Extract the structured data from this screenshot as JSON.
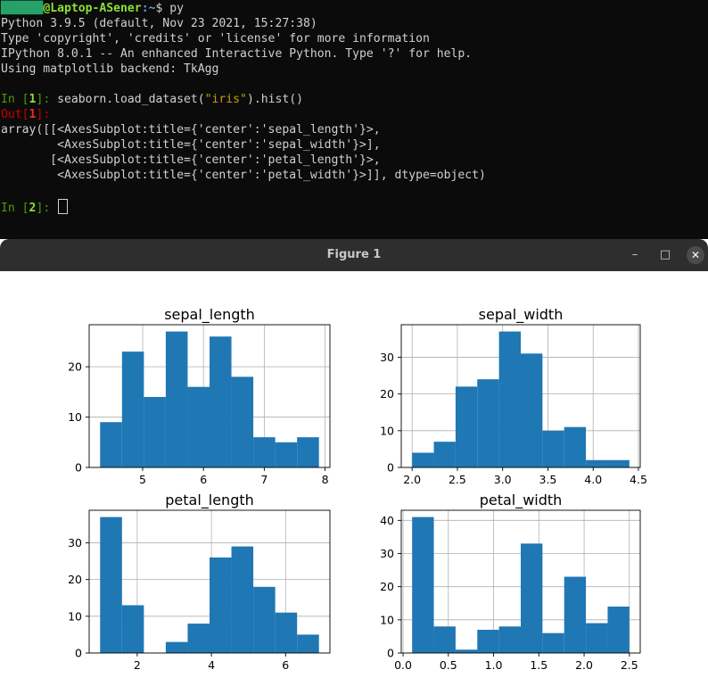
{
  "terminal": {
    "prompt_user": "██████",
    "prompt_host": "@Laptop-ASener",
    "prompt_path": ":~",
    "prompt_symbol": "$ ",
    "command": "py",
    "banner": [
      "Python 3.9.5 (default, Nov 23 2021, 15:27:38)",
      "Type 'copyright', 'credits' or 'license' for more information",
      "IPython 8.0.1 -- An enhanced Interactive Python. Type '?' for help.",
      "Using matplotlib backend: TkAgg"
    ],
    "in1_label": "In [",
    "in1_num": "1",
    "in1_close": "]: ",
    "in1_code_pre": "seaborn.load_dataset(",
    "in1_code_str": "\"iris\"",
    "in1_code_post": ").hist()",
    "out1_label": "Out[",
    "out1_num": "1",
    "out1_close": "]:",
    "output_lines": [
      "array([[<AxesSubplot:title={'center':'sepal_length'}>,",
      "        <AxesSubplot:title={'center':'sepal_width'}>],",
      "       [<AxesSubplot:title={'center':'petal_length'}>,",
      "        <AxesSubplot:title={'center':'petal_width'}>]], dtype=object)"
    ],
    "in2_label": "In [",
    "in2_num": "2",
    "in2_close": "]: "
  },
  "window": {
    "title": "Figure 1",
    "minimize_glyph": "–",
    "maximize_glyph": "□",
    "close_glyph": "✕"
  },
  "colors": {
    "bar": "#1f77b4",
    "grid": "#b0b0b0"
  },
  "chart_data": [
    {
      "type": "bar",
      "title": "sepal_length",
      "bin_edges": [
        4.3,
        4.66,
        5.02,
        5.38,
        5.74,
        6.1,
        6.46,
        6.82,
        7.18,
        7.54,
        7.9
      ],
      "values": [
        9,
        23,
        14,
        27,
        16,
        26,
        18,
        6,
        5,
        6
      ],
      "xlim": [
        4.12,
        8.08
      ],
      "ylim": [
        0,
        28.35
      ],
      "xticks": [
        5,
        6,
        7,
        8
      ],
      "xtick_labels": [
        "5",
        "6",
        "7",
        "8"
      ],
      "yticks": [
        0,
        10,
        20
      ],
      "ytick_labels": [
        "0",
        "10",
        "20"
      ],
      "grid": true
    },
    {
      "type": "bar",
      "title": "sepal_width",
      "bin_edges": [
        2.0,
        2.24,
        2.48,
        2.72,
        2.96,
        3.2,
        3.44,
        3.68,
        3.92,
        4.16,
        4.4
      ],
      "values": [
        4,
        7,
        22,
        24,
        37,
        31,
        10,
        11,
        2,
        2
      ],
      "xlim": [
        1.88,
        4.52
      ],
      "ylim": [
        0,
        38.85
      ],
      "xticks": [
        2.0,
        2.5,
        3.0,
        3.5,
        4.0,
        4.5
      ],
      "xtick_labels": [
        "2.0",
        "2.5",
        "3.0",
        "3.5",
        "4.0",
        "4.5"
      ],
      "yticks": [
        0,
        10,
        20,
        30
      ],
      "ytick_labels": [
        "0",
        "10",
        "20",
        "30"
      ],
      "grid": true
    },
    {
      "type": "bar",
      "title": "petal_length",
      "bin_edges": [
        1.0,
        1.59,
        2.18,
        2.77,
        3.36,
        3.95,
        4.54,
        5.13,
        5.72,
        6.31,
        6.9
      ],
      "values": [
        37,
        13,
        0,
        3,
        8,
        26,
        29,
        18,
        11,
        5
      ],
      "xlim": [
        0.705,
        7.195
      ],
      "ylim": [
        0,
        38.85
      ],
      "xticks": [
        2,
        4,
        6
      ],
      "xtick_labels": [
        "2",
        "4",
        "6"
      ],
      "yticks": [
        0,
        10,
        20,
        30
      ],
      "ytick_labels": [
        "0",
        "10",
        "20",
        "30"
      ],
      "grid": true
    },
    {
      "type": "bar",
      "title": "petal_width",
      "bin_edges": [
        0.1,
        0.34,
        0.58,
        0.82,
        1.06,
        1.3,
        1.54,
        1.78,
        2.02,
        2.26,
        2.5
      ],
      "values": [
        41,
        8,
        1,
        7,
        8,
        33,
        6,
        23,
        9,
        14
      ],
      "xlim": [
        -0.02,
        2.62
      ],
      "ylim": [
        0,
        43.05
      ],
      "xticks": [
        0.0,
        0.5,
        1.0,
        1.5,
        2.0,
        2.5
      ],
      "xtick_labels": [
        "0.0",
        "0.5",
        "1.0",
        "1.5",
        "2.0",
        "2.5"
      ],
      "yticks": [
        0,
        10,
        20,
        30,
        40
      ],
      "ytick_labels": [
        "0",
        "10",
        "20",
        "30",
        "40"
      ],
      "grid": true
    }
  ]
}
